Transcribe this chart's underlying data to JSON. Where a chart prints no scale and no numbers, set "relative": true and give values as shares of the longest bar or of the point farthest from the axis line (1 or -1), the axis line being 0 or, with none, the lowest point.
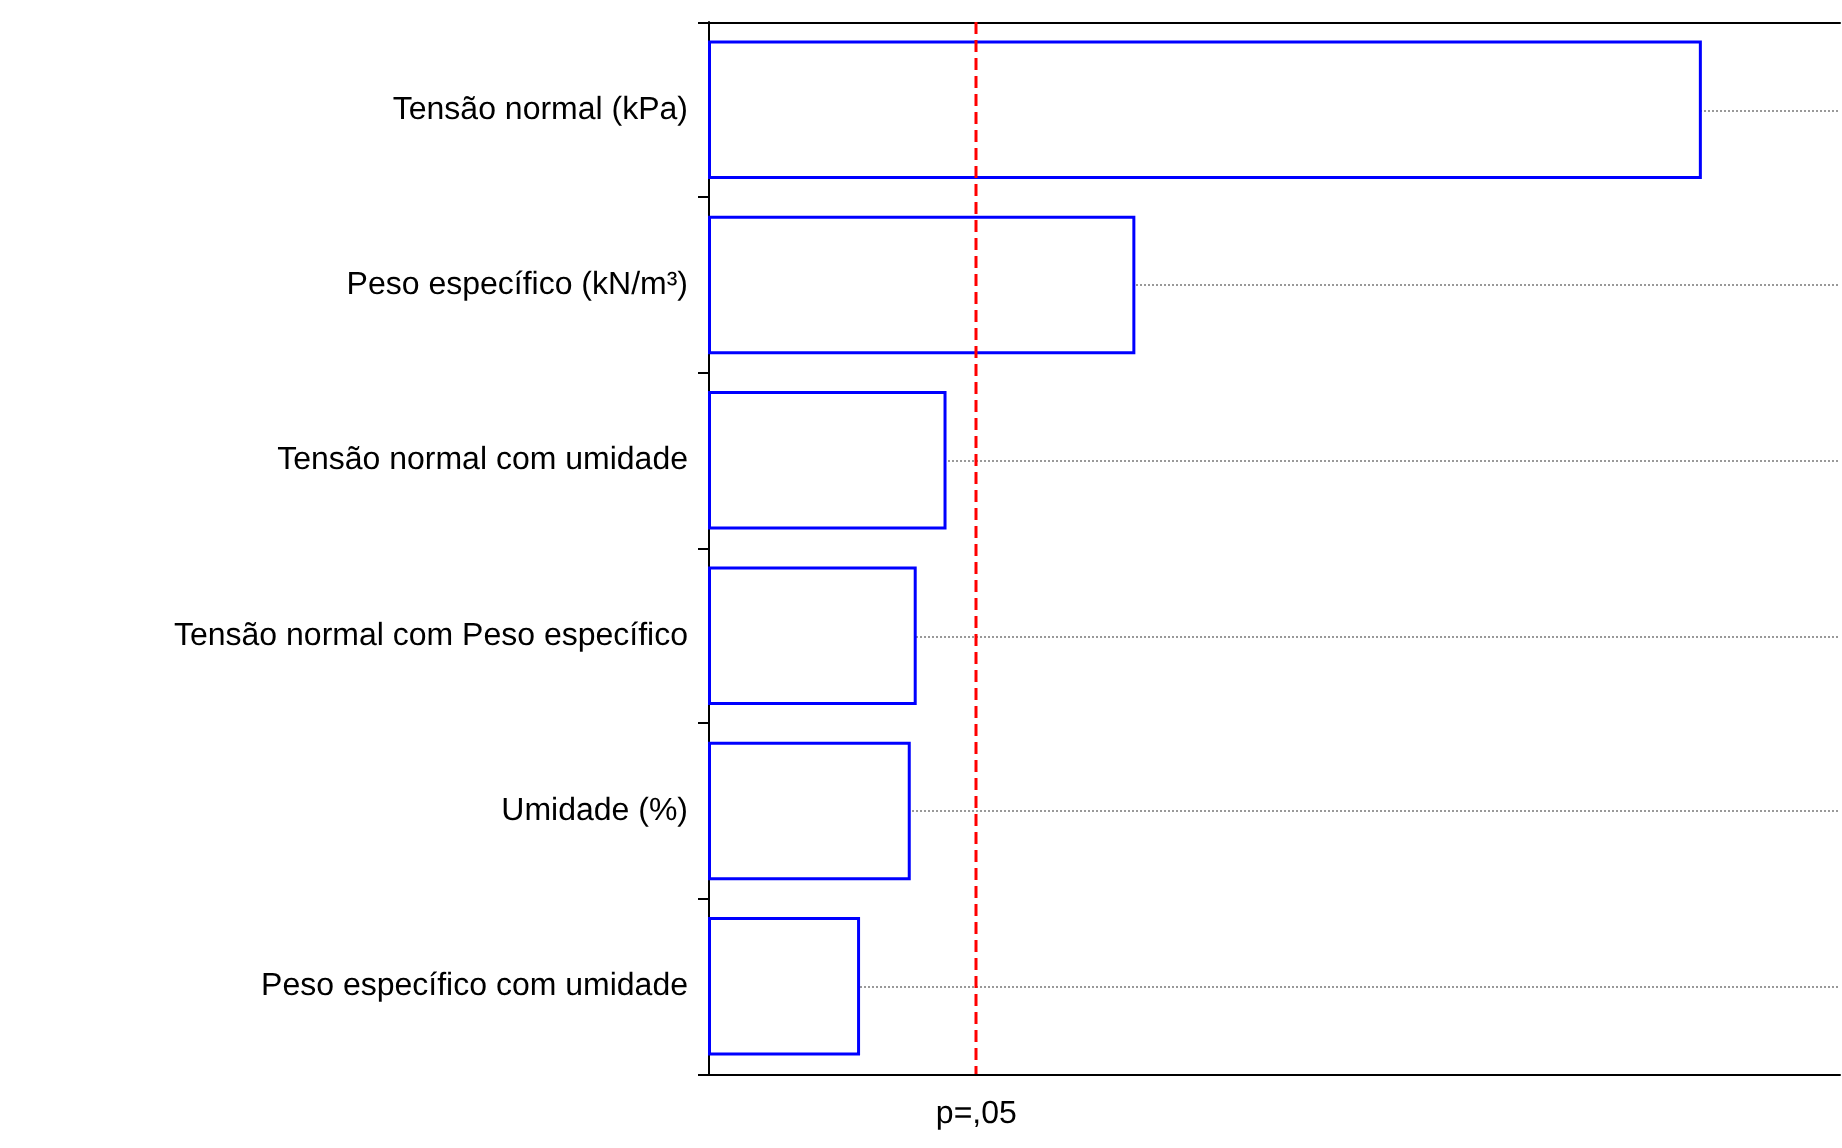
{
  "chart_data": {
    "type": "bar",
    "orientation": "horizontal",
    "relative": true,
    "categories": [
      "Tensão normal (kPa)",
      "Peso específico (kN/m³)",
      "Tensão normal com umidade",
      "Tensão normal com Peso específico",
      "Umidade (%)",
      "Peso específico com umidade"
    ],
    "values": [
      1,
      0.43,
      0.24,
      0.21,
      0.204,
      0.153
    ],
    "color": "#0000ff",
    "grid": "y",
    "ref_lines": [
      {
        "axis": "x",
        "value": 0.27,
        "label": "p=,05",
        "color": "#ff0000",
        "line_style": "dashed"
      }
    ]
  }
}
